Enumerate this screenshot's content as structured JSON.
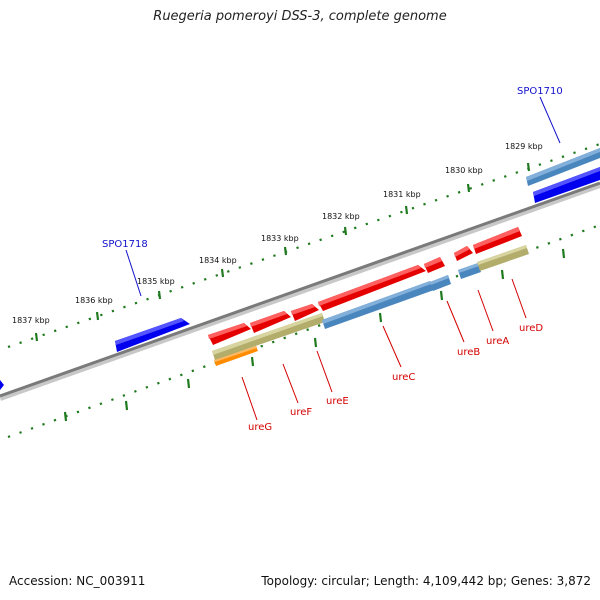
{
  "title": "Ruegeria pomeroyi DSS-3, complete genome",
  "accession": "Accession: NC_003911",
  "summary": "Topology: circular; Length: 4,109,442 bp; Genes: 3,872",
  "colors": {
    "forward_gene": "#e50000",
    "reverse_gene": "#4a86be",
    "feature_olive": "#b3ad6c",
    "feature_orange": "#ff8c00",
    "neighbor_gene": "#0000ee",
    "backbone": "#808080",
    "tick": "#1f7a1f",
    "label_red": "#d40000",
    "label_blue": "#1010cc"
  },
  "ticks": [
    "1837 kbp",
    "1836 kbp",
    "1835 kbp",
    "1834 kbp",
    "1833 kbp",
    "1832 kbp",
    "1831 kbp",
    "1830 kbp",
    "1829 kbp"
  ],
  "genes": {
    "ureG": "ureG",
    "ureF": "ureF",
    "ureE": "ureE",
    "ureC": "ureC",
    "ureB": "ureB",
    "ureA": "ureA",
    "ureD": "ureD",
    "SPO1718": "SPO1718",
    "SPO1710": "SPO1710"
  }
}
